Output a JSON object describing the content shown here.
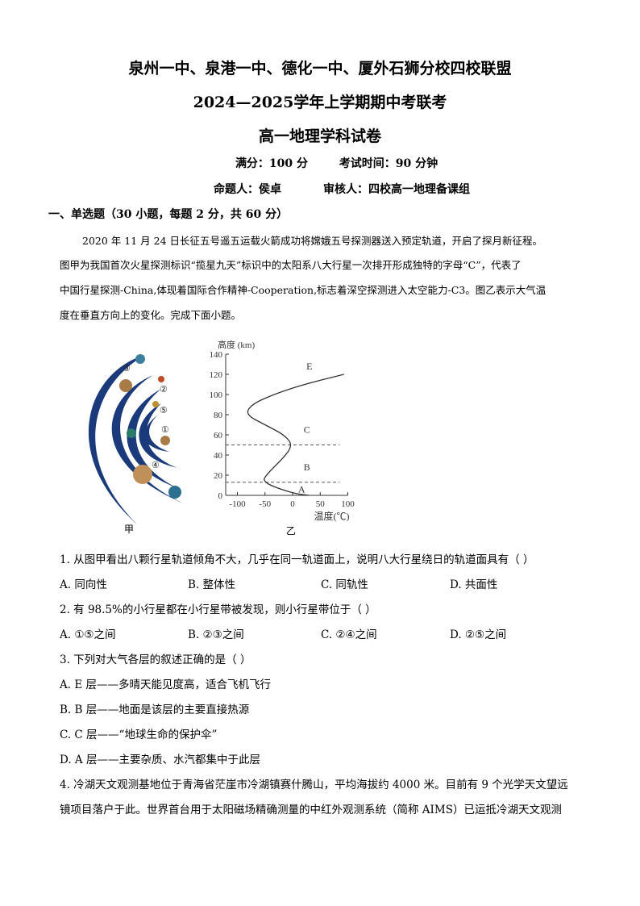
{
  "header": {
    "title1": "泉州一中、泉港一中、德化一中、厦外石狮分校四校联盟",
    "title2": "2024—2025学年上学期期中考联考",
    "title3": "高一地理学科试卷",
    "score": "满分：100 分",
    "time": "考试时间：90 分钟",
    "author": "命题人：侯卓",
    "reviewer": "审核人：四校高一地理备课组"
  },
  "section": "一、单选题（30 小题，每题 2 分，共 60 分）",
  "passage": [
    "2020 年 11 月 24 日长征五号遥五运载火箭成功将嫦娥五号探测器送入预定轨道，开启了探月新征程。",
    "图甲为我国首次火星探测标识“揽星九天”标识中的太阳系八大行星一次排开形成独特的字母“C”，代表了",
    "中国行星探测-China,体现着国际合作精神-Cooperation,标志着深空探测进入太空能力-C3。图乙表示大气温",
    "度在垂直方向上的变化。完成下面小题。"
  ],
  "figure": {
    "left_caption": "甲",
    "right_caption": "乙",
    "planet_labels": [
      "③",
      "②",
      "⑤",
      "①",
      "④"
    ],
    "chart_data": {
      "type": "line",
      "ylabel": "高度 (km)",
      "xlabel": "温度(℃)",
      "xlim": [
        -100,
        100
      ],
      "ylim": [
        0,
        140
      ],
      "xticks": [
        "-100",
        "-50",
        "0",
        "50",
        "100"
      ],
      "yticks": [
        "0",
        "20",
        "40",
        "60",
        "80",
        "100",
        "120",
        "140"
      ],
      "layer_labels": [
        "E",
        "C",
        "B",
        "A"
      ],
      "boundaries_km": [
        13,
        50
      ],
      "points": [
        [
          30,
          0
        ],
        [
          0,
          2
        ],
        [
          -56,
          13
        ],
        [
          -45,
          22
        ],
        [
          -15,
          38
        ],
        [
          0,
          50
        ],
        [
          -15,
          60
        ],
        [
          -50,
          70
        ],
        [
          -85,
          80
        ],
        [
          -75,
          90
        ],
        [
          -35,
          100
        ],
        [
          20,
          110
        ],
        [
          93,
          120
        ]
      ]
    }
  },
  "questions": [
    {
      "stem": "1.  从图甲看出八颗行星轨道倾角不大，几乎在同一轨道面上，说明八大行星绕日的轨道面具有（     ）",
      "options": [
        "A.  同向性",
        "B.  整体性",
        "C.  同轨性",
        "D.  共面性"
      ]
    },
    {
      "stem": "2.  有 98.5%的小行星都在小行星带被发现，则小行星带位于（     ）",
      "options": [
        "A. ①⑤之间",
        "B. ②③之间",
        "C. ②④之间",
        "D. ②⑤之间"
      ]
    },
    {
      "stem": "3.  下列对大气各层的叙述正确的是（     ）",
      "options": [
        "A. E 层——多晴天能见度高，适合飞机飞行",
        "B. B 层——地面是该层的主要直接热源",
        "C. C 层——“地球生命的保护伞”",
        "D. A 层——主要杂质、水汽都集中于此层"
      ]
    },
    {
      "stem": "4.  冷湖天文观测基地位于青海省茫崖市冷湖镇赛什腾山，平均海拔约 4000 米。目前有 9 个光学天文望远",
      "cont": "镜项目落户于此。世界首台用于太阳磁场精确测量的中红外观测系统（简称 AIMS）已运抵冷湖天文观测"
    }
  ]
}
